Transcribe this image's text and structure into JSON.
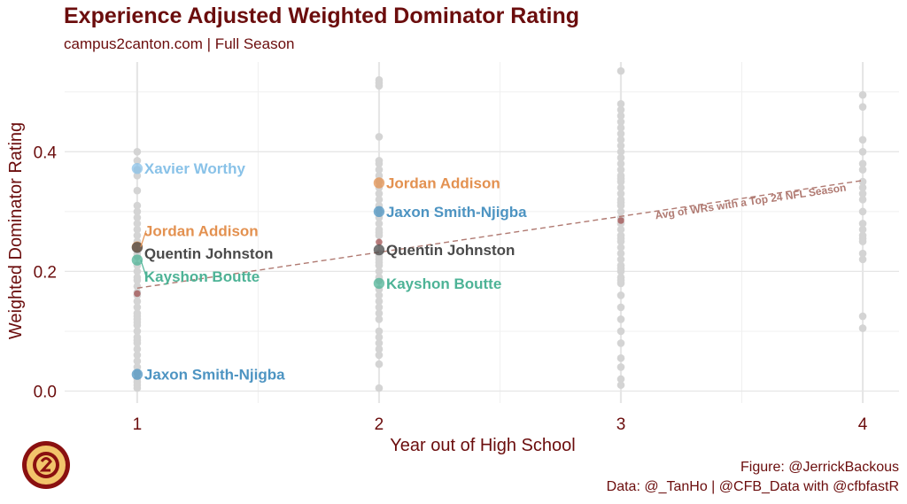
{
  "title": "Experience Adjusted Weighted Dominator Rating",
  "subtitle": "campus2canton.com | Full Season",
  "caption": {
    "line1": "Figure: @JerrickBackous",
    "line2": "Data: @_TanHo | @CFB_Data with @cfbfastR"
  },
  "colors": {
    "text": "#6b0d0d",
    "background_points": "#d4d4d4",
    "xavier_worthy": "#89c2e8",
    "jordan_addison": "#e39150",
    "jaxon_smith_njigba": "#4d94c2",
    "quentin_johnston": "#4a4a4a",
    "kayshon_boutte": "#4db396",
    "average_line": "#b07a72",
    "average_points": "#a05252"
  },
  "chart_data": {
    "type": "scatter",
    "xlabel": "Year out of High School",
    "ylabel": "Weighted Dominator Rating",
    "xlim": [
      0.7,
      4.15
    ],
    "ylim": [
      -0.02,
      0.55
    ],
    "x_ticks": [
      1,
      2,
      3,
      4
    ],
    "x_tick_labels": [
      "1",
      "2",
      "3",
      "4"
    ],
    "y_ticks": [
      0.0,
      0.2,
      0.4
    ],
    "y_tick_labels": [
      "0.0",
      "0.2",
      "0.4"
    ],
    "grid": true,
    "legend": "none",
    "background_series": [
      {
        "x": 1,
        "values": [
          0.005,
          0.01,
          0.015,
          0.02,
          0.03,
          0.04,
          0.05,
          0.06,
          0.07,
          0.08,
          0.085,
          0.09,
          0.1,
          0.11,
          0.115,
          0.12,
          0.125,
          0.13,
          0.14,
          0.15,
          0.16,
          0.165,
          0.175,
          0.185,
          0.19,
          0.2,
          0.21,
          0.225,
          0.23,
          0.25,
          0.26,
          0.27,
          0.28,
          0.29,
          0.3,
          0.31,
          0.335,
          0.36,
          0.37,
          0.385,
          0.4
        ]
      },
      {
        "x": 2,
        "values": [
          0.005,
          0.045,
          0.06,
          0.07,
          0.08,
          0.09,
          0.1,
          0.12,
          0.13,
          0.14,
          0.15,
          0.16,
          0.17,
          0.185,
          0.19,
          0.2,
          0.21,
          0.215,
          0.22,
          0.225,
          0.23,
          0.26,
          0.265,
          0.27,
          0.28,
          0.29,
          0.3,
          0.31,
          0.32,
          0.33,
          0.34,
          0.35,
          0.36,
          0.37,
          0.38,
          0.385,
          0.425,
          0.51,
          0.515,
          0.52
        ]
      },
      {
        "x": 3,
        "values": [
          0.01,
          0.02,
          0.04,
          0.055,
          0.08,
          0.1,
          0.12,
          0.14,
          0.16,
          0.18,
          0.185,
          0.19,
          0.2,
          0.205,
          0.21,
          0.22,
          0.23,
          0.24,
          0.25,
          0.255,
          0.26,
          0.27,
          0.28,
          0.29,
          0.3,
          0.31,
          0.315,
          0.32,
          0.33,
          0.34,
          0.35,
          0.355,
          0.36,
          0.37,
          0.38,
          0.39,
          0.4,
          0.41,
          0.42,
          0.43,
          0.44,
          0.45,
          0.46,
          0.47,
          0.48,
          0.535
        ]
      },
      {
        "x": 4,
        "values": [
          0.105,
          0.125,
          0.22,
          0.23,
          0.25,
          0.255,
          0.26,
          0.27,
          0.28,
          0.3,
          0.32,
          0.33,
          0.34,
          0.35,
          0.37,
          0.38,
          0.4,
          0.42,
          0.475,
          0.495
        ]
      }
    ],
    "average_points": [
      {
        "x": 1,
        "y": 0.163
      },
      {
        "x": 2,
        "y": 0.249
      },
      {
        "x": 3,
        "y": 0.285
      }
    ],
    "average_line": {
      "x": [
        1,
        4
      ],
      "y": [
        0.172,
        0.352
      ],
      "label": "Avg of WRs with a Top 24 NFL Season"
    },
    "highlighted": [
      {
        "name": "Xavier Worthy",
        "color_key": "xavier_worthy",
        "x": 1,
        "y": 0.372,
        "label": "Xavier Worthy"
      },
      {
        "name": "Jordan Addison",
        "color_key": "jordan_addison",
        "x": 1,
        "y": 0.241,
        "label": "Jordan Addison"
      },
      {
        "name": "Quentin Johnston",
        "color_key": "quentin_johnston",
        "x": 1,
        "y": 0.24,
        "label": "Quentin Johnston"
      },
      {
        "name": "Kayshon Boutte",
        "color_key": "kayshon_boutte",
        "x": 1,
        "y": 0.219,
        "label": "Kayshon Boutte"
      },
      {
        "name": "Jaxon Smith-Njigba",
        "color_key": "jaxon_smith_njigba",
        "x": 1,
        "y": 0.028,
        "label": "Jaxon Smith-Njigba"
      },
      {
        "name": "Jordan Addison",
        "color_key": "jordan_addison",
        "x": 2,
        "y": 0.348,
        "label": "Jordan Addison"
      },
      {
        "name": "Jaxon Smith-Njigba",
        "color_key": "jaxon_smith_njigba",
        "x": 2,
        "y": 0.3,
        "label": "Jaxon Smith-Njigba"
      },
      {
        "name": "Quentin Johnston",
        "color_key": "quentin_johnston",
        "x": 2,
        "y": 0.236,
        "label": "Quentin Johnston"
      },
      {
        "name": "Kayshon Boutte",
        "color_key": "kayshon_boutte",
        "x": 2,
        "y": 0.18,
        "label": "Kayshon Boutte"
      }
    ]
  }
}
